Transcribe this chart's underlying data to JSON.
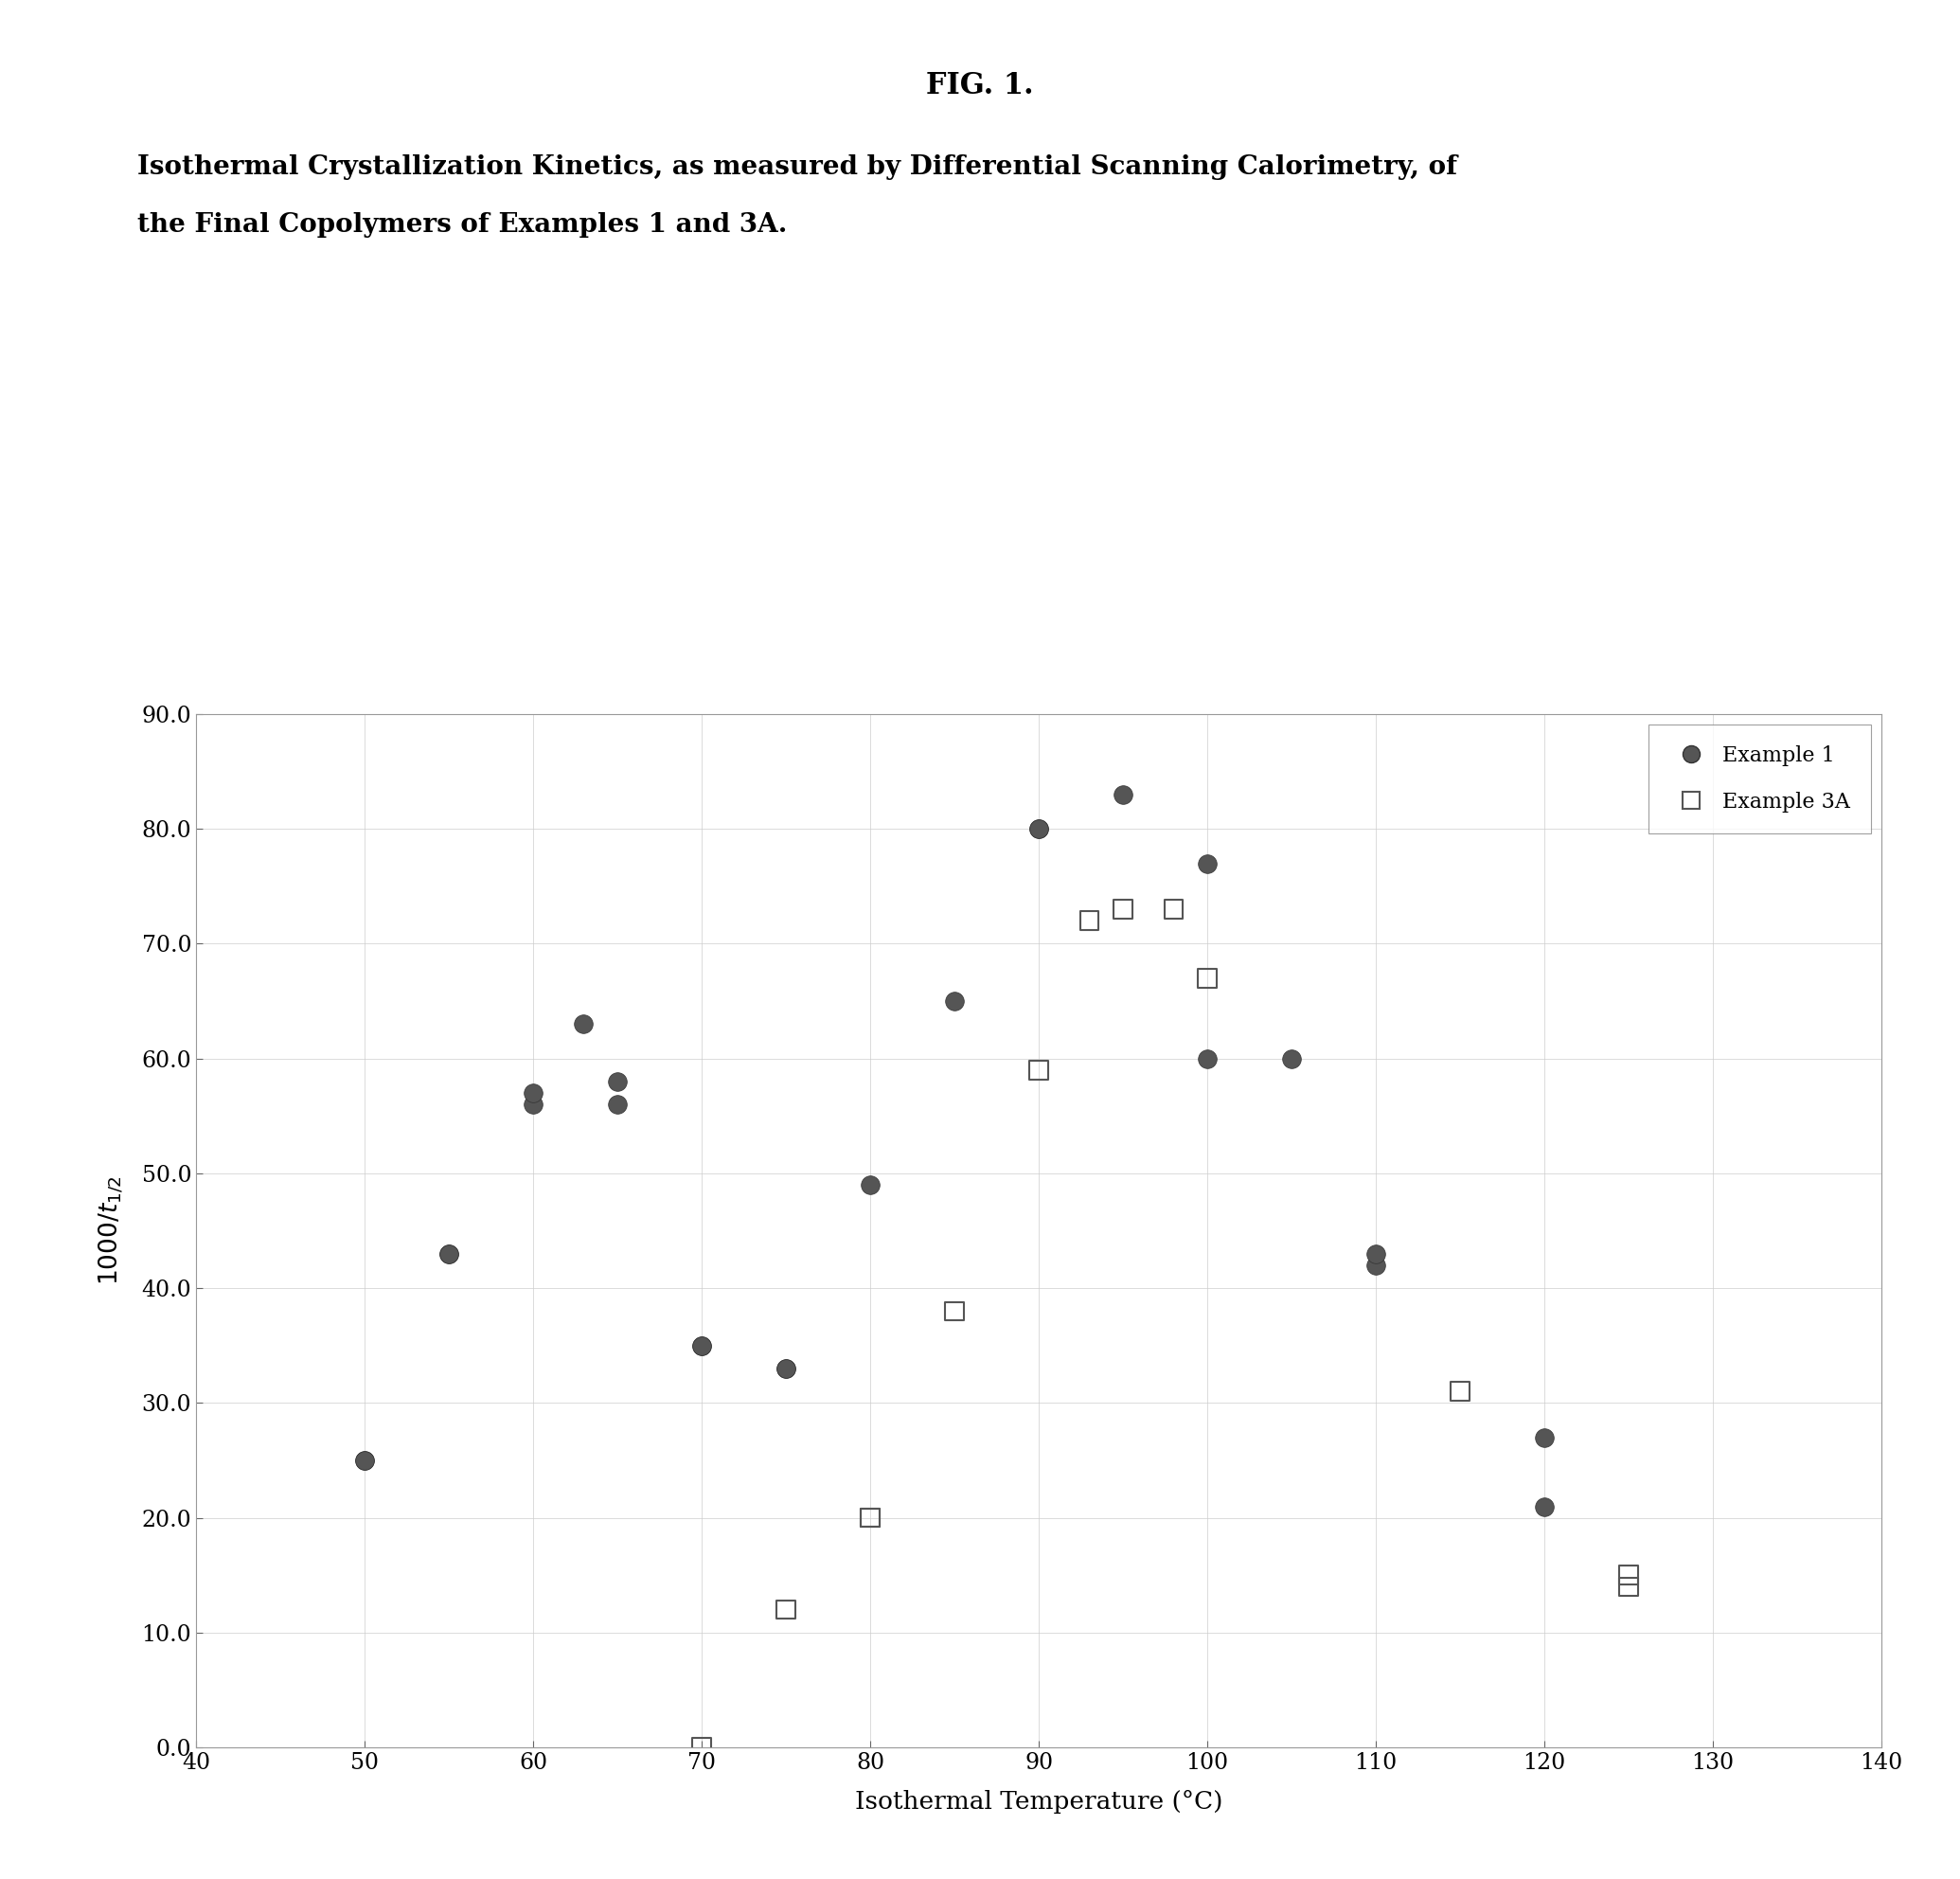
{
  "example1_x": [
    50,
    50,
    55,
    55,
    60,
    60,
    63,
    65,
    65,
    70,
    70,
    75,
    75,
    80,
    85,
    90,
    90,
    95,
    100,
    100,
    105,
    110,
    110,
    120,
    120
  ],
  "example1_y": [
    25,
    25,
    43,
    43,
    56,
    57,
    63,
    58,
    56,
    35,
    35,
    33,
    33,
    49,
    65,
    80,
    80,
    83,
    77,
    60,
    60,
    42,
    43,
    27,
    21
  ],
  "example3a_x": [
    70,
    75,
    80,
    80,
    85,
    90,
    93,
    95,
    98,
    100,
    115,
    125,
    125
  ],
  "example3a_y": [
    0,
    12,
    20,
    20,
    38,
    59,
    72,
    73,
    73,
    67,
    31,
    14,
    15
  ],
  "xlabel": "Isothermal Temperature (°C)",
  "ylabel": "1000/t_{1/2}",
  "xlim": [
    40,
    140
  ],
  "ylim": [
    0.0,
    90.0
  ],
  "xticks": [
    40,
    50,
    60,
    70,
    80,
    90,
    100,
    110,
    120,
    130,
    140
  ],
  "yticks": [
    0.0,
    10.0,
    20.0,
    30.0,
    40.0,
    50.0,
    60.0,
    70.0,
    80.0,
    90.0
  ],
  "fig_title": "FIG. 1.",
  "subtitle_line1": "Isothermal Crystallization Kinetics, as measured by Differential Scanning Calorimetry, of",
  "subtitle_line2": "the Final Copolymers of Examples 1 and 3A.",
  "legend_label1": "Example 1",
  "legend_label2": "Example 3A",
  "background_color": "#ffffff",
  "plot_bg_color": "#ffffff",
  "marker_color1": "#555555",
  "marker_edge_color": "#333333"
}
